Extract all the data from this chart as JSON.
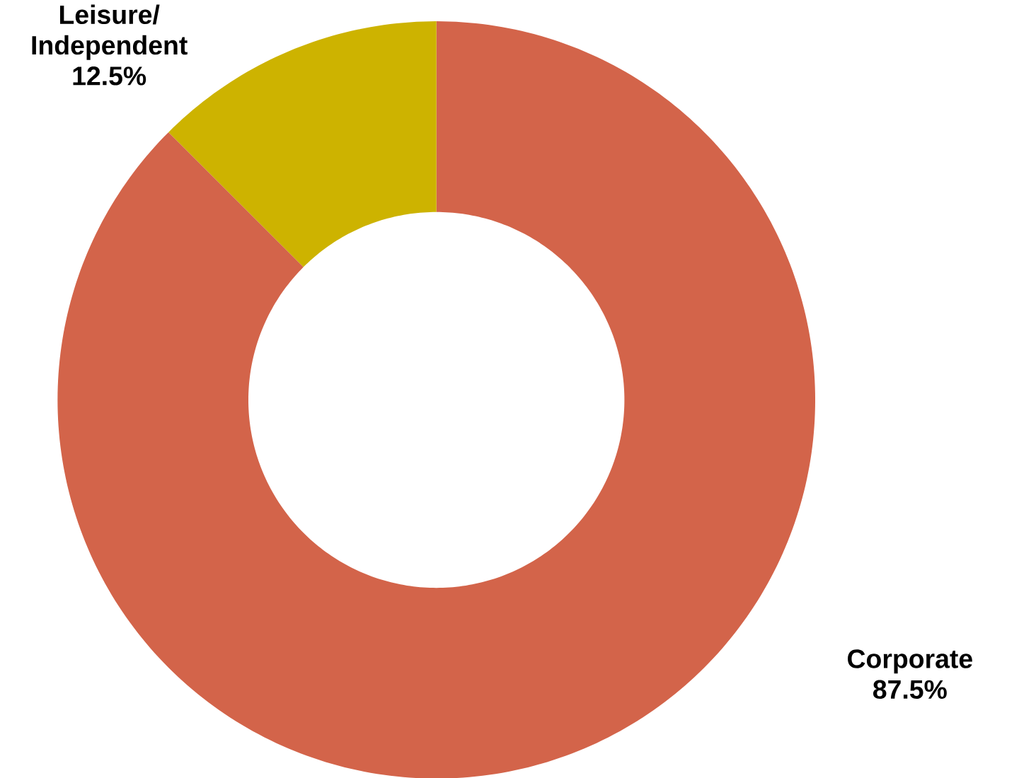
{
  "chart_data": {
    "type": "donut",
    "categories": [
      "Corporate",
      "Leisure/ Independent"
    ],
    "values": [
      87.5,
      12.5
    ],
    "colors": [
      "#d3644a",
      "#cdb300"
    ],
    "value_labels": [
      "87.5%",
      "12.5%"
    ]
  }
}
